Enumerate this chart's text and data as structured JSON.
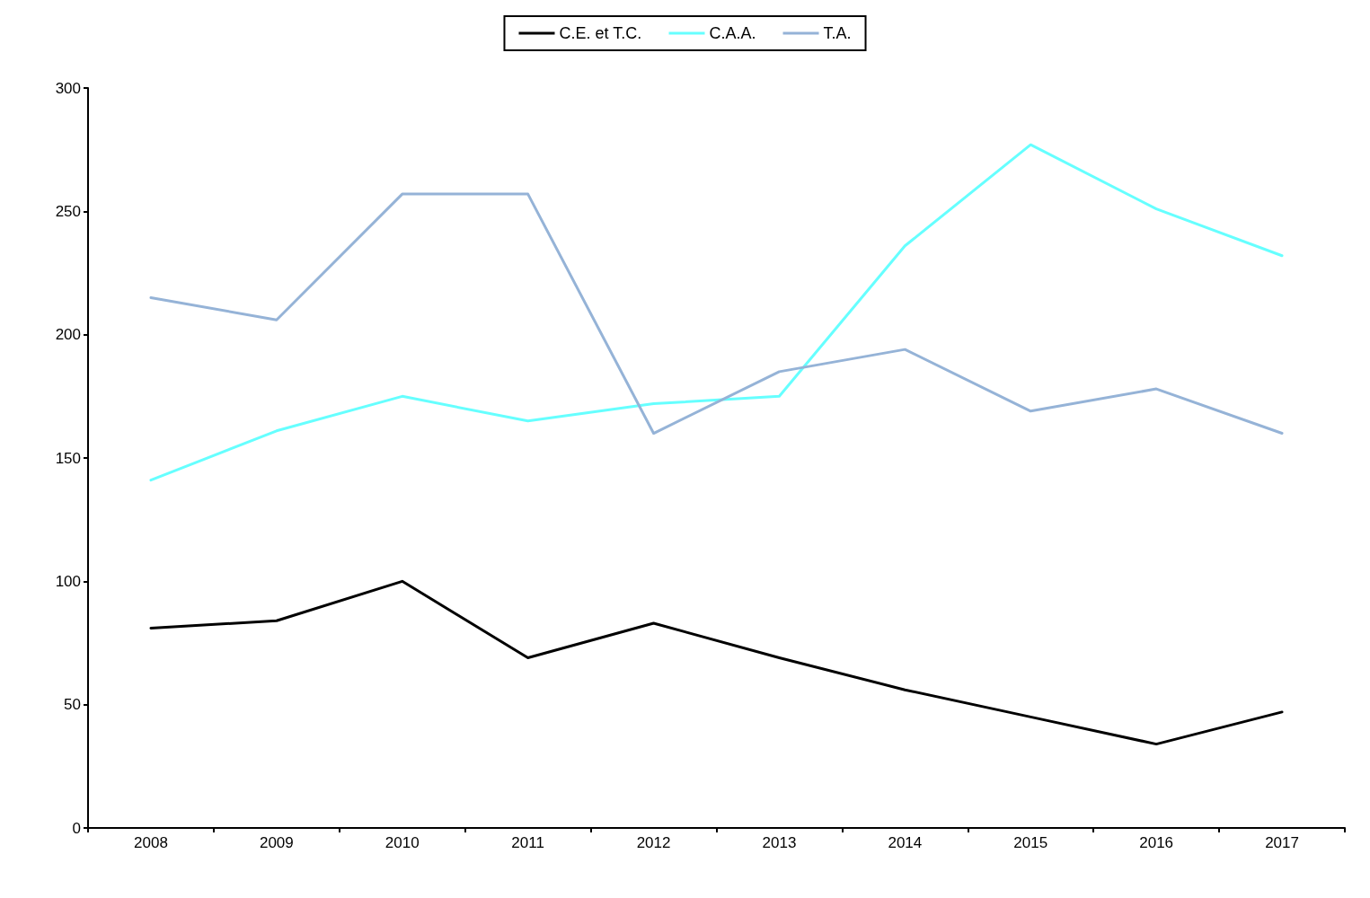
{
  "chart_data": {
    "type": "line",
    "categories": [
      "2008",
      "2009",
      "2010",
      "2011",
      "2012",
      "2013",
      "2014",
      "2015",
      "2016",
      "2017"
    ],
    "series": [
      {
        "name": "C.E. et T.C.",
        "color": "#000000",
        "values": [
          81,
          84,
          100,
          69,
          83,
          69,
          56,
          45,
          34,
          47
        ]
      },
      {
        "name": "C.A.A.",
        "color": "#66ffff",
        "values": [
          141,
          161,
          175,
          165,
          172,
          175,
          236,
          277,
          251,
          232
        ]
      },
      {
        "name": "T.A.",
        "color": "#95b3d7",
        "values": [
          215,
          206,
          257,
          257,
          160,
          185,
          194,
          169,
          178,
          160
        ]
      }
    ],
    "ylim": [
      0,
      300
    ],
    "yticks": [
      0,
      50,
      100,
      150,
      200,
      250,
      300
    ],
    "grid": false,
    "legend": "top",
    "marker": "none",
    "line_style": "solid"
  }
}
